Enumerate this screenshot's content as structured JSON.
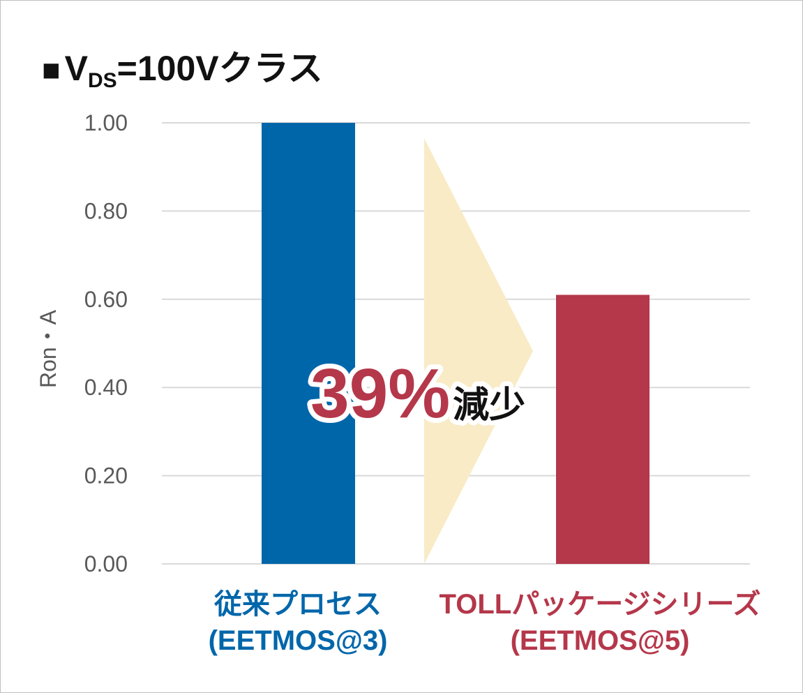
{
  "title": {
    "prefix_square": "■",
    "v": "V",
    "subscript": "DS",
    "rest": "=100Vクラス"
  },
  "annotation": {
    "value": "39%",
    "text": "減少"
  },
  "colors": {
    "series_a": "#0066aa",
    "series_b": "#b5374a",
    "arrow": "#f8ebc6",
    "grid": "#d9d9d9",
    "tick_text": "#595959"
  },
  "chart_data": {
    "type": "bar",
    "title": "■VDS=100Vクラス",
    "xlabel": "",
    "ylabel": "Ron・A",
    "ylim": [
      0,
      1
    ],
    "yticks": [
      "0.00",
      "0.20",
      "0.40",
      "0.60",
      "0.80",
      "1.00"
    ],
    "categories": [
      {
        "line1": "従来プロセス",
        "line2": "(EETMOS@3)"
      },
      {
        "line1": "TOLLパッケージシリーズ",
        "line2": "(EETMOS@5)"
      }
    ],
    "values": [
      1.0,
      0.61
    ],
    "grid": true,
    "legend": "none"
  }
}
